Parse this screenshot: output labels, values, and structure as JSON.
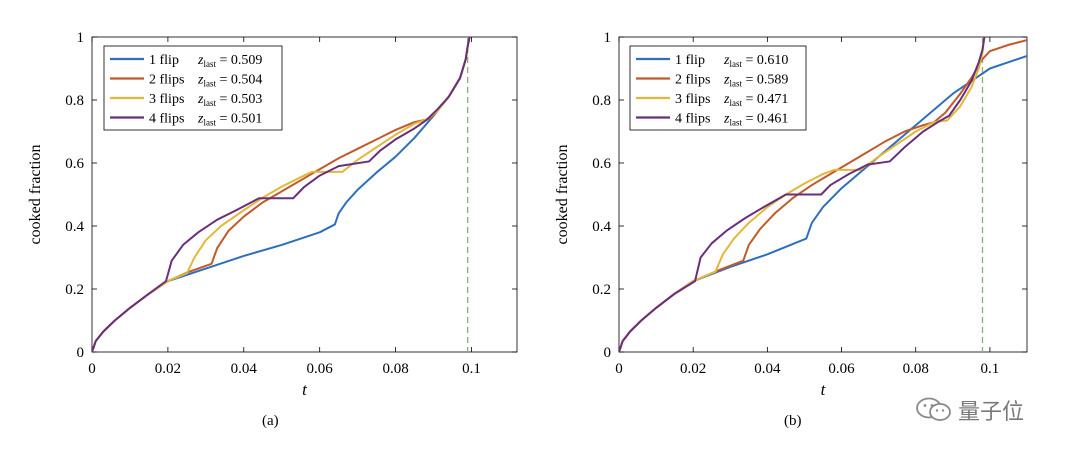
{
  "colors": {
    "flip1": "#2e6fbd",
    "flip2": "#c15a2a",
    "flip3": "#e4b73a",
    "flip4": "#6a2f7c",
    "dashed": "#8ab07a",
    "axis": "#000000"
  },
  "watermark": {
    "icon": "wechat-icon",
    "text": "量子位"
  },
  "chart_data": [
    {
      "type": "line",
      "panel_label": "(a)",
      "xlabel": "t",
      "ylabel": "cooked fraction",
      "xlim": [
        0,
        0.112
      ],
      "ylim": [
        0,
        1
      ],
      "xticks": [
        0,
        0.02,
        0.04,
        0.06,
        0.08,
        0.1
      ],
      "xtick_labels": [
        "0",
        "0.02",
        "0.04",
        "0.06",
        "0.08",
        "0.1"
      ],
      "yticks": [
        0,
        0.2,
        0.4,
        0.6,
        0.8,
        1
      ],
      "ytick_labels": [
        "0",
        "0.2",
        "0.4",
        "0.6",
        "0.8",
        "1"
      ],
      "legend_position": "top-left",
      "grid": false,
      "vline": {
        "x": 0.099,
        "style": "dashed"
      },
      "series": [
        {
          "name": "1 flip",
          "z_symbol": "z",
          "z_subscript": "last",
          "z_value": "= 0.509",
          "color": "flip1",
          "points": [
            [
              0,
              0
            ],
            [
              0.001,
              0.035
            ],
            [
              0.003,
              0.065
            ],
            [
              0.006,
              0.1
            ],
            [
              0.01,
              0.14
            ],
            [
              0.015,
              0.185
            ],
            [
              0.02,
              0.225
            ],
            [
              0.03,
              0.265
            ],
            [
              0.04,
              0.305
            ],
            [
              0.05,
              0.34
            ],
            [
              0.06,
              0.38
            ],
            [
              0.064,
              0.405
            ],
            [
              0.065,
              0.44
            ],
            [
              0.067,
              0.475
            ],
            [
              0.07,
              0.515
            ],
            [
              0.075,
              0.57
            ],
            [
              0.08,
              0.62
            ],
            [
              0.085,
              0.68
            ],
            [
              0.09,
              0.75
            ],
            [
              0.094,
              0.81
            ],
            [
              0.097,
              0.87
            ],
            [
              0.0985,
              0.93
            ],
            [
              0.099,
              0.97
            ],
            [
              0.0995,
              1.0
            ]
          ]
        },
        {
          "name": "2 flips",
          "z_symbol": "z",
          "z_subscript": "last",
          "z_value": "= 0.504",
          "color": "flip2",
          "points": [
            [
              0,
              0
            ],
            [
              0.001,
              0.035
            ],
            [
              0.003,
              0.065
            ],
            [
              0.006,
              0.1
            ],
            [
              0.01,
              0.14
            ],
            [
              0.015,
              0.185
            ],
            [
              0.02,
              0.225
            ],
            [
              0.025,
              0.252
            ],
            [
              0.0315,
              0.28
            ],
            [
              0.033,
              0.33
            ],
            [
              0.036,
              0.385
            ],
            [
              0.04,
              0.43
            ],
            [
              0.045,
              0.475
            ],
            [
              0.05,
              0.51
            ],
            [
              0.055,
              0.545
            ],
            [
              0.06,
              0.58
            ],
            [
              0.065,
              0.615
            ],
            [
              0.07,
              0.645
            ],
            [
              0.075,
              0.675
            ],
            [
              0.08,
              0.705
            ],
            [
              0.085,
              0.73
            ],
            [
              0.089,
              0.74
            ],
            [
              0.091,
              0.765
            ],
            [
              0.094,
              0.81
            ],
            [
              0.097,
              0.87
            ],
            [
              0.0985,
              0.93
            ],
            [
              0.099,
              0.97
            ],
            [
              0.0995,
              1.0
            ]
          ]
        },
        {
          "name": "3 flips",
          "z_symbol": "z",
          "z_subscript": "last",
          "z_value": "= 0.503",
          "color": "flip3",
          "points": [
            [
              0,
              0
            ],
            [
              0.001,
              0.035
            ],
            [
              0.003,
              0.065
            ],
            [
              0.006,
              0.1
            ],
            [
              0.01,
              0.14
            ],
            [
              0.015,
              0.185
            ],
            [
              0.02,
              0.225
            ],
            [
              0.025,
              0.25
            ],
            [
              0.027,
              0.3
            ],
            [
              0.03,
              0.355
            ],
            [
              0.034,
              0.4
            ],
            [
              0.04,
              0.45
            ],
            [
              0.045,
              0.49
            ],
            [
              0.05,
              0.525
            ],
            [
              0.055,
              0.555
            ],
            [
              0.058,
              0.572
            ],
            [
              0.066,
              0.572
            ],
            [
              0.07,
              0.61
            ],
            [
              0.075,
              0.65
            ],
            [
              0.08,
              0.69
            ],
            [
              0.085,
              0.725
            ],
            [
              0.0885,
              0.74
            ],
            [
              0.091,
              0.765
            ],
            [
              0.094,
              0.81
            ],
            [
              0.097,
              0.87
            ],
            [
              0.0985,
              0.93
            ],
            [
              0.099,
              0.97
            ],
            [
              0.0995,
              1.0
            ]
          ]
        },
        {
          "name": "4 flips",
          "z_symbol": "z",
          "z_subscript": "last",
          "z_value": "= 0.501",
          "color": "flip4",
          "points": [
            [
              0,
              0
            ],
            [
              0.001,
              0.035
            ],
            [
              0.003,
              0.065
            ],
            [
              0.006,
              0.1
            ],
            [
              0.01,
              0.14
            ],
            [
              0.015,
              0.185
            ],
            [
              0.0195,
              0.225
            ],
            [
              0.021,
              0.29
            ],
            [
              0.024,
              0.34
            ],
            [
              0.028,
              0.38
            ],
            [
              0.033,
              0.42
            ],
            [
              0.038,
              0.45
            ],
            [
              0.044,
              0.488
            ],
            [
              0.053,
              0.488
            ],
            [
              0.056,
              0.525
            ],
            [
              0.06,
              0.56
            ],
            [
              0.065,
              0.59
            ],
            [
              0.073,
              0.605
            ],
            [
              0.076,
              0.64
            ],
            [
              0.08,
              0.675
            ],
            [
              0.085,
              0.71
            ],
            [
              0.088,
              0.735
            ],
            [
              0.091,
              0.77
            ],
            [
              0.094,
              0.81
            ],
            [
              0.097,
              0.87
            ],
            [
              0.0985,
              0.93
            ],
            [
              0.099,
              0.97
            ],
            [
              0.0995,
              1.0
            ]
          ]
        }
      ]
    },
    {
      "type": "line",
      "panel_label": "(b)",
      "xlabel": "t",
      "ylabel": "cooked fraction",
      "xlim": [
        0,
        0.11
      ],
      "ylim": [
        0,
        1
      ],
      "xticks": [
        0,
        0.02,
        0.04,
        0.06,
        0.08,
        0.1
      ],
      "xtick_labels": [
        "0",
        "0.02",
        "0.04",
        "0.06",
        "0.08",
        "0.1"
      ],
      "yticks": [
        0,
        0.2,
        0.4,
        0.6,
        0.8,
        1
      ],
      "ytick_labels": [
        "0",
        "0.2",
        "0.4",
        "0.6",
        "0.8",
        "1"
      ],
      "legend_position": "top-left",
      "grid": false,
      "vline": {
        "x": 0.098,
        "style": "dashed"
      },
      "series": [
        {
          "name": "1 flip",
          "z_symbol": "z",
          "z_subscript": "last",
          "z_value": "= 0.610",
          "color": "flip1",
          "points": [
            [
              0,
              0
            ],
            [
              0.001,
              0.035
            ],
            [
              0.003,
              0.065
            ],
            [
              0.006,
              0.1
            ],
            [
              0.01,
              0.14
            ],
            [
              0.015,
              0.185
            ],
            [
              0.02,
              0.225
            ],
            [
              0.03,
              0.27
            ],
            [
              0.04,
              0.31
            ],
            [
              0.0505,
              0.36
            ],
            [
              0.052,
              0.41
            ],
            [
              0.055,
              0.46
            ],
            [
              0.06,
              0.52
            ],
            [
              0.065,
              0.57
            ],
            [
              0.07,
              0.62
            ],
            [
              0.075,
              0.67
            ],
            [
              0.08,
              0.72
            ],
            [
              0.085,
              0.77
            ],
            [
              0.09,
              0.82
            ],
            [
              0.095,
              0.86
            ],
            [
              0.1,
              0.9
            ],
            [
              0.105,
              0.92
            ],
            [
              0.11,
              0.94
            ]
          ]
        },
        {
          "name": "2 flips",
          "z_symbol": "z",
          "z_subscript": "last",
          "z_value": "= 0.589",
          "color": "flip2",
          "points": [
            [
              0,
              0
            ],
            [
              0.001,
              0.035
            ],
            [
              0.003,
              0.065
            ],
            [
              0.006,
              0.1
            ],
            [
              0.01,
              0.14
            ],
            [
              0.015,
              0.185
            ],
            [
              0.02,
              0.225
            ],
            [
              0.027,
              0.26
            ],
            [
              0.0335,
              0.29
            ],
            [
              0.035,
              0.34
            ],
            [
              0.038,
              0.39
            ],
            [
              0.042,
              0.44
            ],
            [
              0.047,
              0.49
            ],
            [
              0.052,
              0.53
            ],
            [
              0.057,
              0.565
            ],
            [
              0.062,
              0.6
            ],
            [
              0.067,
              0.635
            ],
            [
              0.072,
              0.67
            ],
            [
              0.077,
              0.7
            ],
            [
              0.082,
              0.72
            ],
            [
              0.085,
              0.73
            ],
            [
              0.088,
              0.76
            ],
            [
              0.092,
              0.82
            ],
            [
              0.095,
              0.87
            ],
            [
              0.098,
              0.93
            ],
            [
              0.1,
              0.955
            ],
            [
              0.105,
              0.975
            ],
            [
              0.11,
              0.99
            ]
          ]
        },
        {
          "name": "3 flips",
          "z_symbol": "z",
          "z_subscript": "last",
          "z_value": "= 0.471",
          "color": "flip3",
          "points": [
            [
              0,
              0
            ],
            [
              0.001,
              0.035
            ],
            [
              0.003,
              0.065
            ],
            [
              0.006,
              0.1
            ],
            [
              0.01,
              0.14
            ],
            [
              0.015,
              0.185
            ],
            [
              0.02,
              0.225
            ],
            [
              0.026,
              0.255
            ],
            [
              0.028,
              0.31
            ],
            [
              0.031,
              0.36
            ],
            [
              0.035,
              0.41
            ],
            [
              0.04,
              0.46
            ],
            [
              0.045,
              0.5
            ],
            [
              0.05,
              0.535
            ],
            [
              0.055,
              0.565
            ],
            [
              0.058,
              0.578
            ],
            [
              0.065,
              0.578
            ],
            [
              0.07,
              0.62
            ],
            [
              0.075,
              0.66
            ],
            [
              0.08,
              0.7
            ],
            [
              0.085,
              0.73
            ],
            [
              0.0885,
              0.735
            ],
            [
              0.092,
              0.78
            ],
            [
              0.095,
              0.84
            ],
            [
              0.097,
              0.9
            ],
            [
              0.098,
              0.95
            ],
            [
              0.0985,
              1.0
            ]
          ]
        },
        {
          "name": "4 flips",
          "z_symbol": "z",
          "z_subscript": "last",
          "z_value": "= 0.461",
          "color": "flip4",
          "points": [
            [
              0,
              0
            ],
            [
              0.001,
              0.035
            ],
            [
              0.003,
              0.065
            ],
            [
              0.006,
              0.1
            ],
            [
              0.01,
              0.14
            ],
            [
              0.015,
              0.185
            ],
            [
              0.0205,
              0.225
            ],
            [
              0.022,
              0.3
            ],
            [
              0.025,
              0.345
            ],
            [
              0.029,
              0.385
            ],
            [
              0.034,
              0.425
            ],
            [
              0.039,
              0.46
            ],
            [
              0.045,
              0.5
            ],
            [
              0.0545,
              0.5
            ],
            [
              0.057,
              0.53
            ],
            [
              0.062,
              0.565
            ],
            [
              0.067,
              0.595
            ],
            [
              0.073,
              0.605
            ],
            [
              0.077,
              0.65
            ],
            [
              0.082,
              0.7
            ],
            [
              0.086,
              0.73
            ],
            [
              0.089,
              0.75
            ],
            [
              0.092,
              0.8
            ],
            [
              0.095,
              0.86
            ],
            [
              0.097,
              0.92
            ],
            [
              0.098,
              0.96
            ],
            [
              0.0985,
              1.0
            ]
          ]
        }
      ]
    }
  ]
}
